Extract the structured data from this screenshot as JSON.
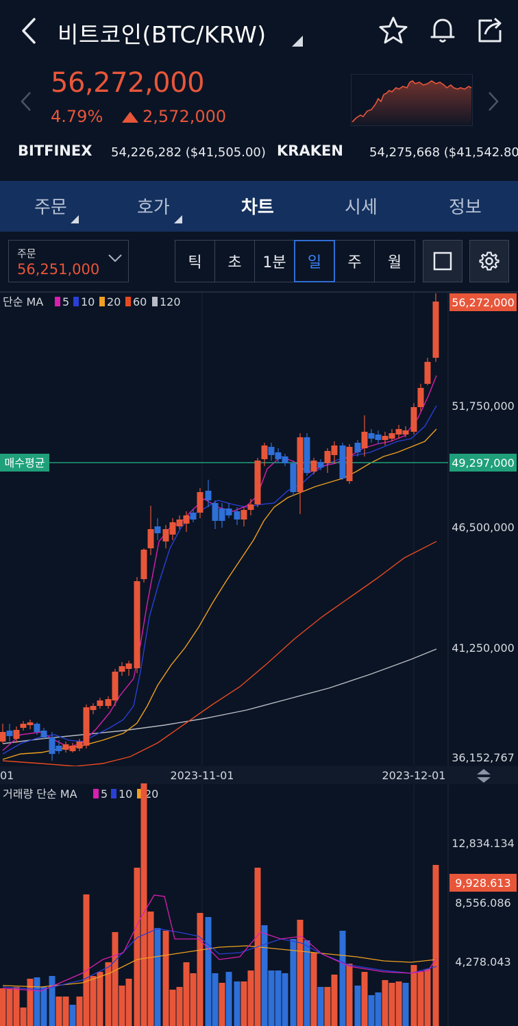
{
  "header": {
    "title": "비트코인(BTC/KRW)",
    "icons": [
      "back-icon",
      "star-icon",
      "bell-icon",
      "share-icon"
    ]
  },
  "price": {
    "current": "56,272,000",
    "change_pct": "4.79%",
    "change_amount": "2,572,000",
    "direction": "up",
    "color": "#e8563a"
  },
  "exchanges": [
    {
      "name": "BITFINEX",
      "value": "54,226,282 ($41,505.00)"
    },
    {
      "name": "KRAKEN",
      "value": "54,275,668 ($41,542.80)"
    }
  ],
  "tabs": [
    {
      "label": "주문",
      "has_caret": true,
      "active": false
    },
    {
      "label": "호가",
      "has_caret": true,
      "active": false
    },
    {
      "label": "차트",
      "has_caret": false,
      "active": true
    },
    {
      "label": "시세",
      "has_caret": false,
      "active": false
    },
    {
      "label": "정보",
      "has_caret": false,
      "active": false
    }
  ],
  "toolbar": {
    "order_label": "주문",
    "order_value": "56,251,000",
    "periods": [
      {
        "label": "틱",
        "active": false
      },
      {
        "label": "초",
        "active": false
      },
      {
        "label": "1분",
        "active": false
      },
      {
        "label": "일",
        "active": true
      },
      {
        "label": "주",
        "active": false
      },
      {
        "label": "월",
        "active": false
      }
    ]
  },
  "colors": {
    "up": "#e8563a",
    "down": "#2e6fd8",
    "ma5": "#d81fb0",
    "ma10": "#2a3fd6",
    "ma20": "#f0a020",
    "ma60": "#e84a20",
    "ma120": "#b8bcc4",
    "buy_avg_line": "#1fa07a"
  },
  "chart_data": {
    "type": "candlestick",
    "legend_prefix": "단순 MA",
    "legend": [
      "5",
      "10",
      "20",
      "60",
      "120"
    ],
    "y_ticks": [
      "51,750,000",
      "46,500,000",
      "41,250,000",
      "36,152,767"
    ],
    "current_price_label": "56,272,000",
    "buy_avg_label": "매수평균",
    "buy_avg_value": "49,297,000",
    "x_ticks": [
      "01",
      "2023-11-01",
      "2023-12-01"
    ],
    "last_close": 56272000,
    "buy_avg": 49297000,
    "y_min": 36152767,
    "volume": {
      "legend_prefix": "거래량 단순 MA",
      "legend": [
        "5",
        "10",
        "20"
      ],
      "y_ticks": [
        "12,834.134",
        "8,556.086",
        "4,278.043"
      ],
      "current_label": "9,928.613",
      "last_volume": 9928.613
    }
  }
}
